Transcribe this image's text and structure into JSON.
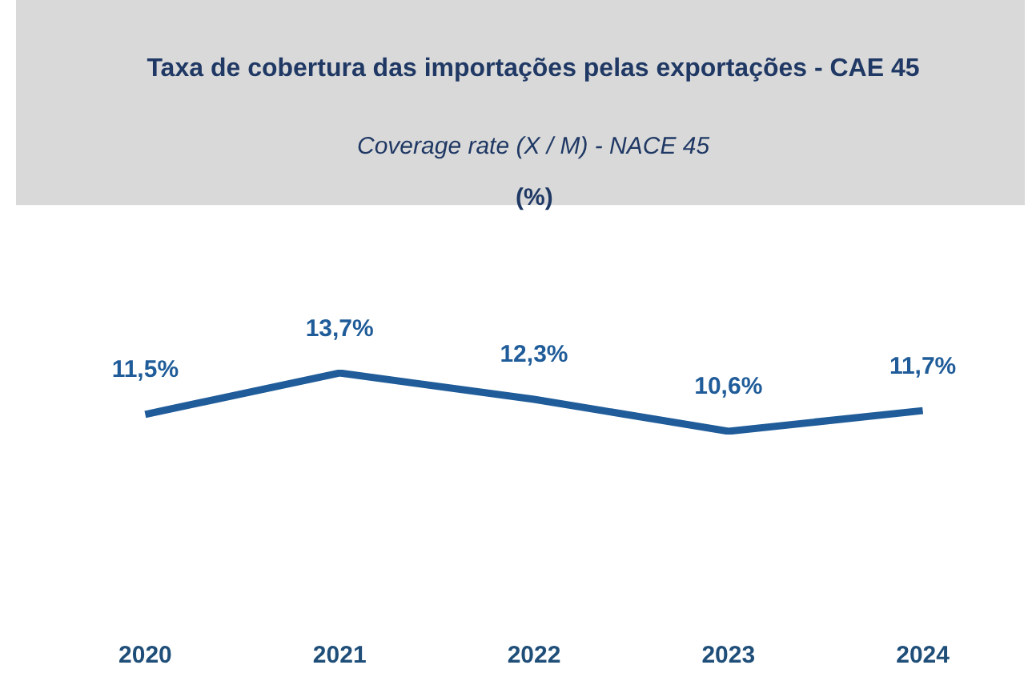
{
  "chart_data": {
    "type": "line",
    "title": "Taxa de cobertura das importações pelas exportações - CAE 45",
    "subtitle": "Coverage rate (X / M) - NACE 45",
    "annotations": [
      "(%)"
    ],
    "categories": [
      "2020",
      "2021",
      "2022",
      "2023",
      "2024"
    ],
    "series": [
      {
        "color": "#1f5c99",
        "values": [
          11.5,
          13.7,
          12.3,
          10.6,
          11.7
        ],
        "value_labels": [
          "11,5%",
          "13,7%",
          "12,3%",
          "10,6%",
          "11,7%"
        ]
      }
    ],
    "marker": "none",
    "line_style": "solid",
    "tick_labels": "x"
  }
}
